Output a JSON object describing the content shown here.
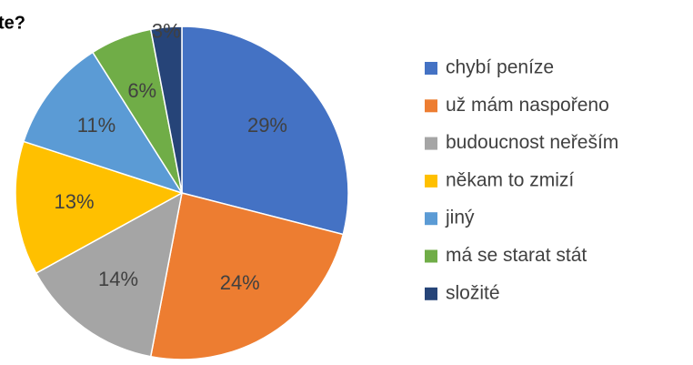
{
  "chart_data": {
    "type": "pie",
    "title": "te?",
    "categories": [
      "chybí peníze",
      "už mám naspořeno",
      "budoucnost neřeším",
      "někam to zmizí",
      "jiný",
      "má se starat stát",
      "složité"
    ],
    "values": [
      29,
      24,
      14,
      13,
      11,
      6,
      3
    ],
    "value_labels": [
      "29%",
      "24%",
      "14%",
      "13%",
      "11%",
      "6%",
      "3%"
    ],
    "colors": [
      "#4472c4",
      "#ed7d31",
      "#a5a5a5",
      "#ffc000",
      "#5b9bd5",
      "#70ad47",
      "#264478"
    ],
    "legend": "right"
  }
}
